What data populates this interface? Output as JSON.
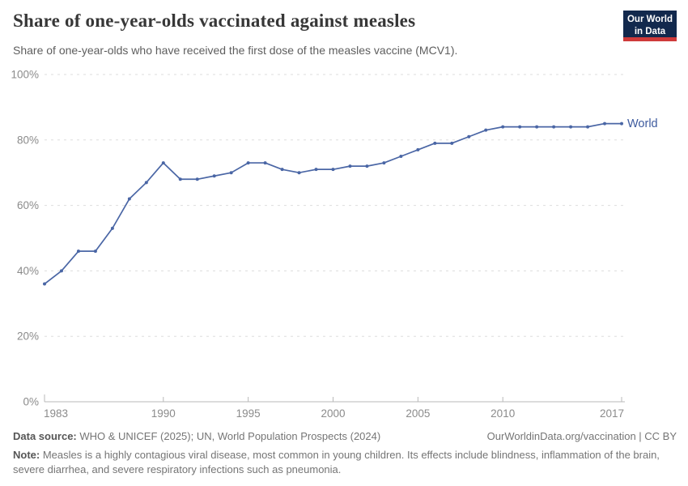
{
  "header": {
    "title": "Share of one-year-olds vaccinated against measles",
    "subtitle": "Share of one-year-olds who have received the first dose of the measles vaccine (MCV1)."
  },
  "logo": {
    "line1": "Our World",
    "line2": "in Data",
    "bg_color": "#12294d",
    "accent_color": "#cf3a3a"
  },
  "chart_data": {
    "type": "line",
    "title": "Share of one-year-olds vaccinated against measles",
    "subtitle": "Share of one-year-olds who have received the first dose of the measles vaccine (MCV1).",
    "xlabel": "",
    "ylabel": "",
    "x": [
      1983,
      1984,
      1985,
      1986,
      1987,
      1988,
      1989,
      1990,
      1991,
      1992,
      1993,
      1994,
      1995,
      1996,
      1997,
      1998,
      1999,
      2000,
      2001,
      2002,
      2003,
      2004,
      2005,
      2006,
      2007,
      2008,
      2009,
      2010,
      2011,
      2012,
      2013,
      2014,
      2015,
      2016,
      2017
    ],
    "series": [
      {
        "name": "World",
        "color": "#4a66a5",
        "values": [
          36,
          40,
          46,
          46,
          53,
          62,
          67,
          73,
          68,
          68,
          69,
          70,
          73,
          73,
          71,
          70,
          71,
          71,
          72,
          72,
          73,
          75,
          77,
          79,
          79,
          81,
          83,
          84,
          84,
          84,
          84,
          84,
          84,
          85,
          85
        ]
      }
    ],
    "ylim": [
      0,
      100
    ],
    "yticks": [
      0,
      20,
      40,
      60,
      80,
      100
    ],
    "ytick_suffix": "%",
    "xticks": [
      1983,
      1990,
      1995,
      2000,
      2005,
      2010,
      2017
    ],
    "grid": "horizontal dashed",
    "legend_position": "end-of-line"
  },
  "footer": {
    "datasource_label": "Data source:",
    "datasource_text": " WHO & UNICEF (2025); UN, World Population Prospects (2024)",
    "link": "OurWorldinData.org/vaccination | CC BY",
    "note_label": "Note:",
    "note_text": " Measles is a highly contagious viral disease, most common in young children. Its effects include blindness, inflammation of the brain, severe diarrhea, and severe respiratory infections such as pneumonia."
  }
}
